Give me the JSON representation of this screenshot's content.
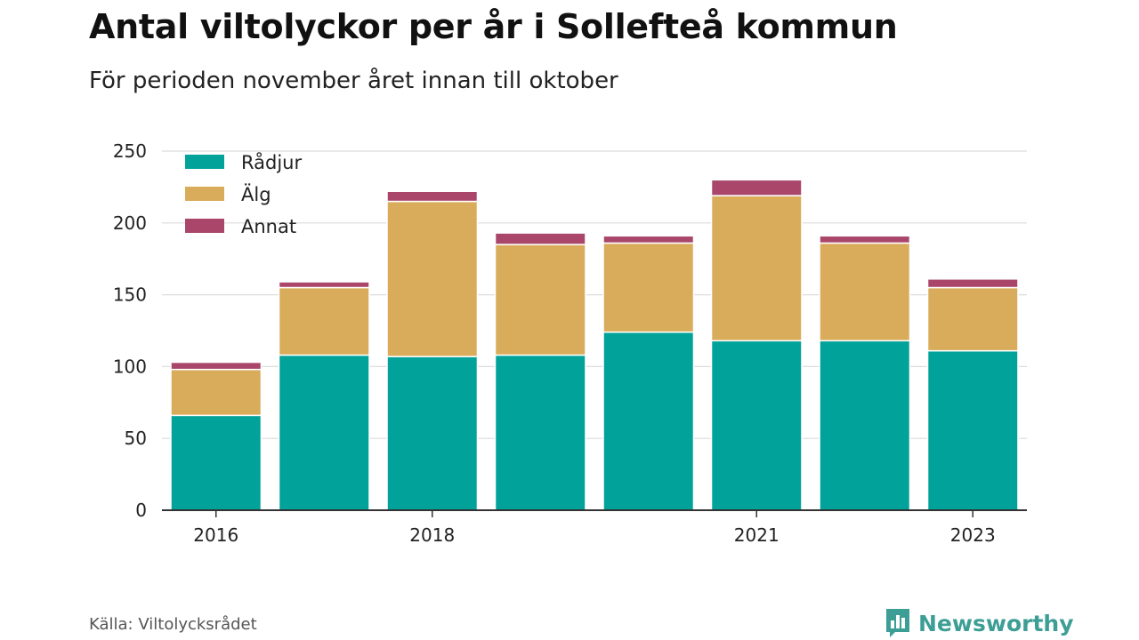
{
  "title": "Antal viltolyckor per år i Sollefteå kommun",
  "subtitle": "För perioden november året innan till oktober",
  "source": "Källa: Viltolycksrådet",
  "brand": {
    "name": "Newsworthy",
    "icon": "bar-chart-logo-icon",
    "color": "#3d9e95"
  },
  "chart_data": {
    "type": "bar",
    "stacked": true,
    "categories": [
      "2016",
      "2017",
      "2018",
      "2019",
      "2020",
      "2021",
      "2022",
      "2023"
    ],
    "x_tick_labels": [
      "2016",
      "2018",
      "2021",
      "2023"
    ],
    "series": [
      {
        "name": "Rådjur",
        "color": "#00a29a",
        "values": [
          66,
          108,
          107,
          108,
          124,
          118,
          118,
          111
        ]
      },
      {
        "name": "Älg",
        "color": "#d8ac5a",
        "values": [
          32,
          47,
          108,
          77,
          62,
          101,
          68,
          44
        ]
      },
      {
        "name": "Annat",
        "color": "#a9466a",
        "values": [
          5,
          4,
          7,
          8,
          5,
          11,
          5,
          6
        ]
      }
    ],
    "ylim": [
      0,
      250
    ],
    "y_ticks": [
      0,
      50,
      100,
      150,
      200,
      250
    ],
    "grid": true,
    "legend_position": "top-left",
    "xlabel": "",
    "ylabel": ""
  }
}
